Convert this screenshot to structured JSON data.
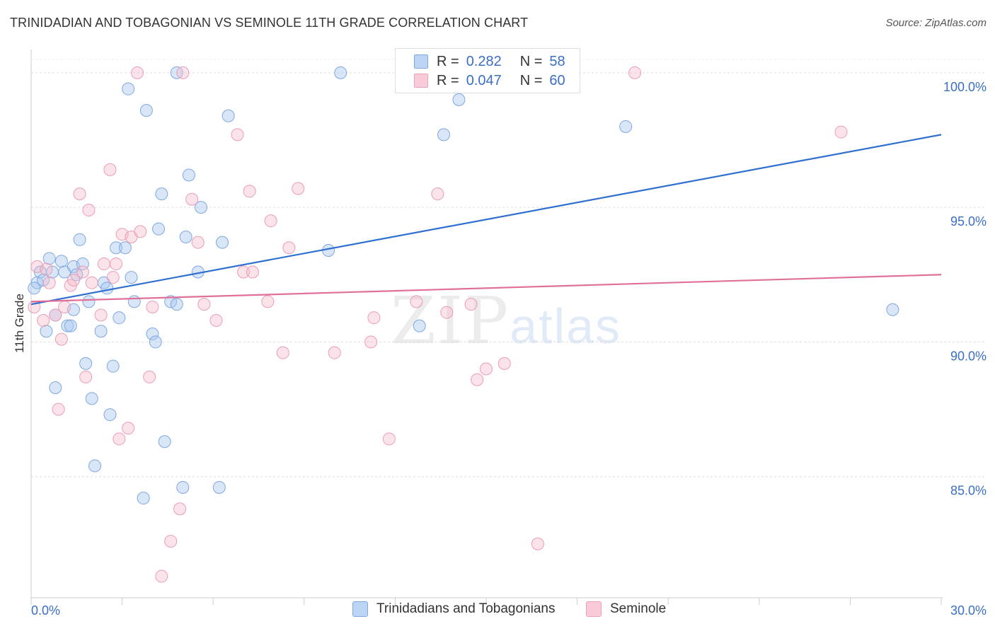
{
  "title": "TRINIDADIAN AND TOBAGONIAN VS SEMINOLE 11TH GRADE CORRELATION CHART",
  "source": "Source: ZipAtlas.com",
  "watermark": {
    "zip": "ZIP",
    "atlas": "atlas"
  },
  "legend": {
    "r_label": "R =",
    "n_label": "N =",
    "series1": {
      "r": "0.282",
      "n": "58"
    },
    "series2": {
      "r": "0.047",
      "n": "60"
    }
  },
  "chart_data": {
    "type": "scatter",
    "title": "TRINIDADIAN AND TOBAGONIAN VS SEMINOLE 11TH GRADE CORRELATION CHART",
    "xlabel": "",
    "ylabel": "11th Grade",
    "xlim": [
      0,
      30
    ],
    "ylim": [
      80.5,
      100.6
    ],
    "x_tick_labels": [
      "0.0%",
      "30.0%"
    ],
    "y_ticks": [
      85,
      90,
      95,
      100
    ],
    "y_tick_labels": [
      "85.0%",
      "90.0%",
      "95.0%",
      "100.0%"
    ],
    "legend_position": "top-center",
    "colors": {
      "series1": "#a9c8f0",
      "series1_line": "#2f6fcf",
      "series2": "#f5b8cb",
      "series2_line": "#e0709a"
    },
    "series": [
      {
        "name": "Trinidadians and Tobagonians",
        "R": 0.282,
        "N": 58,
        "trend": {
          "x": [
            0,
            30
          ],
          "y": [
            91.4,
            97.7
          ]
        },
        "points": [
          [
            0.2,
            92.2
          ],
          [
            0.3,
            92.6
          ],
          [
            0.4,
            92.3
          ],
          [
            0.5,
            90.4
          ],
          [
            0.6,
            93.1
          ],
          [
            0.7,
            92.6
          ],
          [
            0.8,
            91.0
          ],
          [
            0.8,
            88.3
          ],
          [
            1.0,
            93.0
          ],
          [
            1.1,
            92.6
          ],
          [
            1.2,
            90.6
          ],
          [
            1.3,
            90.6
          ],
          [
            1.4,
            91.2
          ],
          [
            1.4,
            92.8
          ],
          [
            1.5,
            92.5
          ],
          [
            1.6,
            93.8
          ],
          [
            1.7,
            92.9
          ],
          [
            1.8,
            89.2
          ],
          [
            1.9,
            91.5
          ],
          [
            2.0,
            87.9
          ],
          [
            2.1,
            85.4
          ],
          [
            2.3,
            90.4
          ],
          [
            2.4,
            92.2
          ],
          [
            2.5,
            92.0
          ],
          [
            2.6,
            87.3
          ],
          [
            2.7,
            89.1
          ],
          [
            2.8,
            93.5
          ],
          [
            2.9,
            90.9
          ],
          [
            3.1,
            93.5
          ],
          [
            3.2,
            99.4
          ],
          [
            3.3,
            92.4
          ],
          [
            3.4,
            91.5
          ],
          [
            3.7,
            84.2
          ],
          [
            3.8,
            98.6
          ],
          [
            4.0,
            90.3
          ],
          [
            4.1,
            90.0
          ],
          [
            4.2,
            94.2
          ],
          [
            4.3,
            95.5
          ],
          [
            4.4,
            86.3
          ],
          [
            4.6,
            91.5
          ],
          [
            4.8,
            91.4
          ],
          [
            4.8,
            100.0
          ],
          [
            5.0,
            84.6
          ],
          [
            5.1,
            93.9
          ],
          [
            5.2,
            96.2
          ],
          [
            5.5,
            92.6
          ],
          [
            5.6,
            95.0
          ],
          [
            6.2,
            84.6
          ],
          [
            6.3,
            93.7
          ],
          [
            6.5,
            98.4
          ],
          [
            9.8,
            93.4
          ],
          [
            10.2,
            100.0
          ],
          [
            12.8,
            90.6
          ],
          [
            13.6,
            97.7
          ],
          [
            14.1,
            99.0
          ],
          [
            19.6,
            98.0
          ],
          [
            28.4,
            91.2
          ],
          [
            0.1,
            92.0
          ]
        ]
      },
      {
        "name": "Seminole",
        "R": 0.047,
        "N": 60,
        "trend": {
          "x": [
            0,
            30
          ],
          "y": [
            91.5,
            92.5
          ]
        },
        "points": [
          [
            0.1,
            91.3
          ],
          [
            0.2,
            92.8
          ],
          [
            0.4,
            90.8
          ],
          [
            0.5,
            92.7
          ],
          [
            0.6,
            92.2
          ],
          [
            0.8,
            91.0
          ],
          [
            0.9,
            87.5
          ],
          [
            1.0,
            90.1
          ],
          [
            1.1,
            91.3
          ],
          [
            1.3,
            92.1
          ],
          [
            1.4,
            92.3
          ],
          [
            1.6,
            95.5
          ],
          [
            1.7,
            92.6
          ],
          [
            1.8,
            88.7
          ],
          [
            1.9,
            94.9
          ],
          [
            2.0,
            92.2
          ],
          [
            2.3,
            91.0
          ],
          [
            2.4,
            92.9
          ],
          [
            2.6,
            96.4
          ],
          [
            2.7,
            92.4
          ],
          [
            2.8,
            92.9
          ],
          [
            2.9,
            86.4
          ],
          [
            3.0,
            94.0
          ],
          [
            3.2,
            86.8
          ],
          [
            3.3,
            93.9
          ],
          [
            3.5,
            100.0
          ],
          [
            3.6,
            94.1
          ],
          [
            3.9,
            88.7
          ],
          [
            4.0,
            91.3
          ],
          [
            4.3,
            81.3
          ],
          [
            4.6,
            82.6
          ],
          [
            4.9,
            83.8
          ],
          [
            5.0,
            100.0
          ],
          [
            5.3,
            95.3
          ],
          [
            5.5,
            93.7
          ],
          [
            5.7,
            91.4
          ],
          [
            6.1,
            90.8
          ],
          [
            6.8,
            97.7
          ],
          [
            7.0,
            92.6
          ],
          [
            7.2,
            95.6
          ],
          [
            7.3,
            92.6
          ],
          [
            7.8,
            91.5
          ],
          [
            7.9,
            94.5
          ],
          [
            8.3,
            89.6
          ],
          [
            8.5,
            93.5
          ],
          [
            8.8,
            95.7
          ],
          [
            10.0,
            89.6
          ],
          [
            11.2,
            90.0
          ],
          [
            11.3,
            90.9
          ],
          [
            11.8,
            86.4
          ],
          [
            12.7,
            91.5
          ],
          [
            13.4,
            95.5
          ],
          [
            13.7,
            91.1
          ],
          [
            14.5,
            91.4
          ],
          [
            14.7,
            88.6
          ],
          [
            15.0,
            89.0
          ],
          [
            15.6,
            89.2
          ],
          [
            16.7,
            82.5
          ],
          [
            19.9,
            100.0
          ],
          [
            26.7,
            97.8
          ]
        ]
      }
    ]
  }
}
